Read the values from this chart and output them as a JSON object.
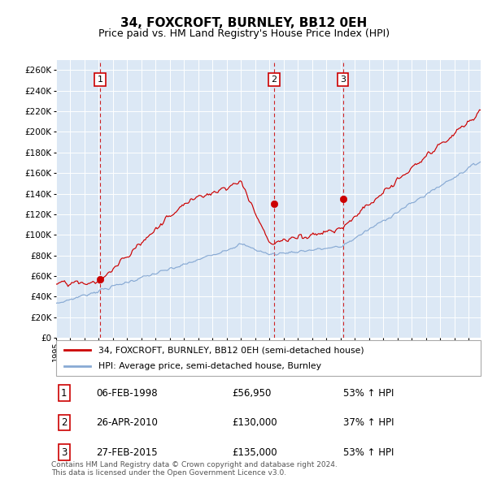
{
  "title": "34, FOXCROFT, BURNLEY, BB12 0EH",
  "subtitle": "Price paid vs. HM Land Registry's House Price Index (HPI)",
  "ylim": [
    0,
    270000
  ],
  "yticks": [
    0,
    20000,
    40000,
    60000,
    80000,
    100000,
    120000,
    140000,
    160000,
    180000,
    200000,
    220000,
    240000,
    260000
  ],
  "xlim_start": 1995.0,
  "xlim_end": 2024.83,
  "sale_color": "#cc0000",
  "hpi_color": "#88aad4",
  "background_color": "#dce8f5",
  "sales": [
    {
      "date": 1998.09,
      "price": 56950,
      "label": "1"
    },
    {
      "date": 2010.32,
      "price": 130000,
      "label": "2"
    },
    {
      "date": 2015.16,
      "price": 135000,
      "label": "3"
    }
  ],
  "vline_dates": [
    1998.09,
    2010.32,
    2015.16
  ],
  "legend_sale_label": "34, FOXCROFT, BURNLEY, BB12 0EH (semi-detached house)",
  "legend_hpi_label": "HPI: Average price, semi-detached house, Burnley",
  "table_rows": [
    {
      "num": "1",
      "date": "06-FEB-1998",
      "price": "£56,950",
      "change": "53% ↑ HPI"
    },
    {
      "num": "2",
      "date": "26-APR-2010",
      "price": "£130,000",
      "change": "37% ↑ HPI"
    },
    {
      "num": "3",
      "date": "27-FEB-2015",
      "price": "£135,000",
      "change": "53% ↑ HPI"
    }
  ],
  "footnote": "Contains HM Land Registry data © Crown copyright and database right 2024.\nThis data is licensed under the Open Government Licence v3.0.",
  "title_fontsize": 11,
  "subtitle_fontsize": 9
}
